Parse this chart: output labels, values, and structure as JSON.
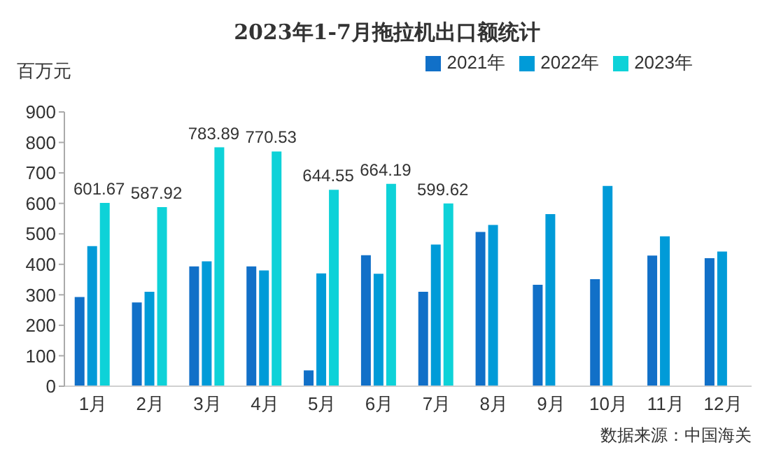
{
  "chart_data": {
    "type": "bar",
    "title": "2023年1-7月拖拉机出口额统计",
    "ylabel": "百万元",
    "categories": [
      "1月",
      "2月",
      "3月",
      "4月",
      "5月",
      "6月",
      "7月",
      "8月",
      "9月",
      "10月",
      "11月",
      "12月"
    ],
    "series": [
      {
        "name": "2021年",
        "color": "#1170c8",
        "values": [
          293,
          275,
          393,
          393,
          52,
          430,
          310,
          506,
          333,
          351,
          429,
          420
        ]
      },
      {
        "name": "2022年",
        "color": "#009bd8",
        "values": [
          460,
          310,
          410,
          380,
          370,
          369,
          465,
          529,
          565,
          657,
          492,
          442
        ]
      },
      {
        "name": "2023年",
        "color": "#0ed2d8",
        "values": [
          601.67,
          587.92,
          783.89,
          770.53,
          644.55,
          664.19,
          599.62,
          null,
          null,
          null,
          null,
          null
        ],
        "value_labels": [
          "601.67",
          "587.92",
          "783.89",
          "770.53",
          "644.55",
          "664.19",
          "599.62",
          null,
          null,
          null,
          null,
          null
        ]
      }
    ],
    "ylim": [
      0,
      900
    ],
    "yticks": [
      0,
      100,
      200,
      300,
      400,
      500,
      600,
      700,
      800,
      900
    ],
    "grid": false,
    "legend": "top right",
    "annotations": [
      "数据来源：中国海关"
    ]
  }
}
